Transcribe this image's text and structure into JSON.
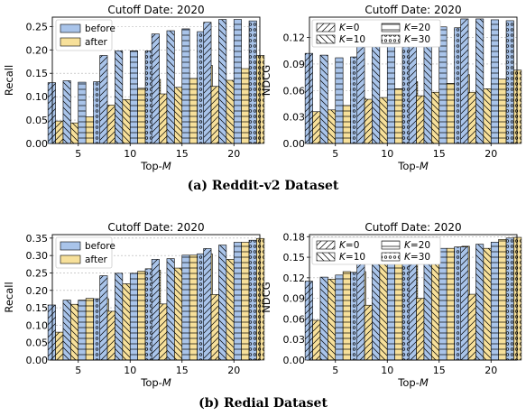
{
  "colors": {
    "before": "#a9c4ea",
    "after": "#f7e09a",
    "edge": "#000000",
    "grid": "#b0b0b0"
  },
  "captions": {
    "a": "(a) Reddit-v2 Dataset",
    "b": "(b) Redial Dataset"
  },
  "legend_before_after": {
    "before": "before",
    "after": "after"
  },
  "legend_k": {
    "k0": "K=0",
    "k10": "K=10",
    "k20": "K=20",
    "k30": "K=30"
  },
  "chart_data": [
    {
      "id": "reddit-recall",
      "type": "bar",
      "title": "Cutoff Date: 2020",
      "xlabel": "Top-M",
      "ylabel": "Recall",
      "categories": [
        "5",
        "10",
        "15",
        "20"
      ],
      "k_values": [
        "0",
        "10",
        "20",
        "30"
      ],
      "ylim": [
        0,
        0.27
      ],
      "yticks": [
        "0.00",
        "0.05",
        "0.10",
        "0.15",
        "0.20",
        "0.25"
      ],
      "ytick_values": [
        0,
        0.05,
        0.1,
        0.15,
        0.2,
        0.25
      ],
      "legend": "before-after",
      "series": [
        {
          "name": "before",
          "values": [
            [
              0.13,
              0.134,
              0.131,
              0.132
            ],
            [
              0.188,
              0.198,
              0.198,
              0.198
            ],
            [
              0.234,
              0.241,
              0.245,
              0.239
            ],
            [
              0.259,
              0.265,
              0.265,
              0.262
            ]
          ]
        },
        {
          "name": "after",
          "values": [
            [
              0.048,
              0.044,
              0.057,
              0.08
            ],
            [
              0.082,
              0.094,
              0.118,
              0.137
            ],
            [
              0.106,
              0.12,
              0.139,
              0.167
            ],
            [
              0.122,
              0.135,
              0.16,
              0.188
            ]
          ]
        }
      ]
    },
    {
      "id": "reddit-ndcg",
      "type": "bar",
      "title": "Cutoff Date: 2020",
      "xlabel": "Top-M",
      "ylabel": "NDCG",
      "categories": [
        "5",
        "10",
        "15",
        "20"
      ],
      "k_values": [
        "0",
        "10",
        "20",
        "30"
      ],
      "ylim": [
        0,
        0.143
      ],
      "yticks": [
        "0.00",
        "0.03",
        "0.06",
        "0.09",
        "0.12"
      ],
      "ytick_values": [
        0,
        0.03,
        0.06,
        0.09,
        0.12
      ],
      "legend": "k",
      "series": [
        {
          "name": "before",
          "values": [
            [
              0.102,
              0.1,
              0.097,
              0.098
            ],
            [
              0.122,
              0.121,
              0.121,
              0.12
            ],
            [
              0.131,
              0.134,
              0.132,
              0.131
            ],
            [
              0.141,
              0.141,
              0.14,
              0.139
            ]
          ]
        },
        {
          "name": "after",
          "values": [
            [
              0.036,
              0.038,
              0.043,
              0.051
            ],
            [
              0.05,
              0.052,
              0.062,
              0.07
            ],
            [
              0.054,
              0.058,
              0.068,
              0.078
            ],
            [
              0.058,
              0.062,
              0.073,
              0.083
            ]
          ]
        }
      ]
    },
    {
      "id": "redial-recall",
      "type": "bar",
      "title": "Cutoff Date: 2020",
      "xlabel": "Top-M",
      "ylabel": "Recall",
      "categories": [
        "5",
        "10",
        "15",
        "20"
      ],
      "k_values": [
        "0",
        "10",
        "20",
        "30"
      ],
      "ylim": [
        0,
        0.36
      ],
      "yticks": [
        "0.00",
        "0.05",
        "0.10",
        "0.15",
        "0.20",
        "0.25",
        "0.30",
        "0.35"
      ],
      "ytick_values": [
        0,
        0.05,
        0.1,
        0.15,
        0.2,
        0.25,
        0.3,
        0.35
      ],
      "legend": "before-after",
      "series": [
        {
          "name": "before",
          "values": [
            [
              0.158,
              0.172,
              0.172,
              0.176
            ],
            [
              0.242,
              0.249,
              0.249,
              0.262
            ],
            [
              0.289,
              0.291,
              0.301,
              0.305
            ],
            [
              0.32,
              0.33,
              0.338,
              0.344
            ]
          ]
        },
        {
          "name": "after",
          "values": [
            [
              0.08,
              0.16,
              0.177,
              0.176
            ],
            [
              0.14,
              0.219,
              0.255,
              0.258
            ],
            [
              0.161,
              0.264,
              0.301,
              0.305
            ],
            [
              0.188,
              0.289,
              0.338,
              0.349
            ]
          ]
        }
      ]
    },
    {
      "id": "redial-ndcg",
      "type": "bar",
      "title": "Cutoff Date: 2020",
      "xlabel": "Top-M",
      "ylabel": "NDCG",
      "categories": [
        "5",
        "10",
        "15",
        "20"
      ],
      "k_values": [
        "0",
        "10",
        "20",
        "30"
      ],
      "ylim": [
        0,
        0.183
      ],
      "yticks": [
        "0.00",
        "0.03",
        "0.06",
        "0.09",
        "0.12",
        "0.15",
        "0.18"
      ],
      "ytick_values": [
        0,
        0.03,
        0.06,
        0.09,
        0.12,
        0.15,
        0.18
      ],
      "legend": "k",
      "series": [
        {
          "name": "before",
          "values": [
            [
              0.115,
              0.121,
              0.124,
              0.128
            ],
            [
              0.141,
              0.145,
              0.146,
              0.151
            ],
            [
              0.155,
              0.158,
              0.163,
              0.165
            ],
            [
              0.165,
              0.169,
              0.172,
              0.178
            ]
          ]
        },
        {
          "name": "after",
          "values": [
            [
              0.058,
              0.118,
              0.129,
              0.129
            ],
            [
              0.08,
              0.14,
              0.152,
              0.154
            ],
            [
              0.09,
              0.155,
              0.163,
              0.166
            ],
            [
              0.096,
              0.163,
              0.176,
              0.179
            ]
          ]
        }
      ]
    }
  ]
}
